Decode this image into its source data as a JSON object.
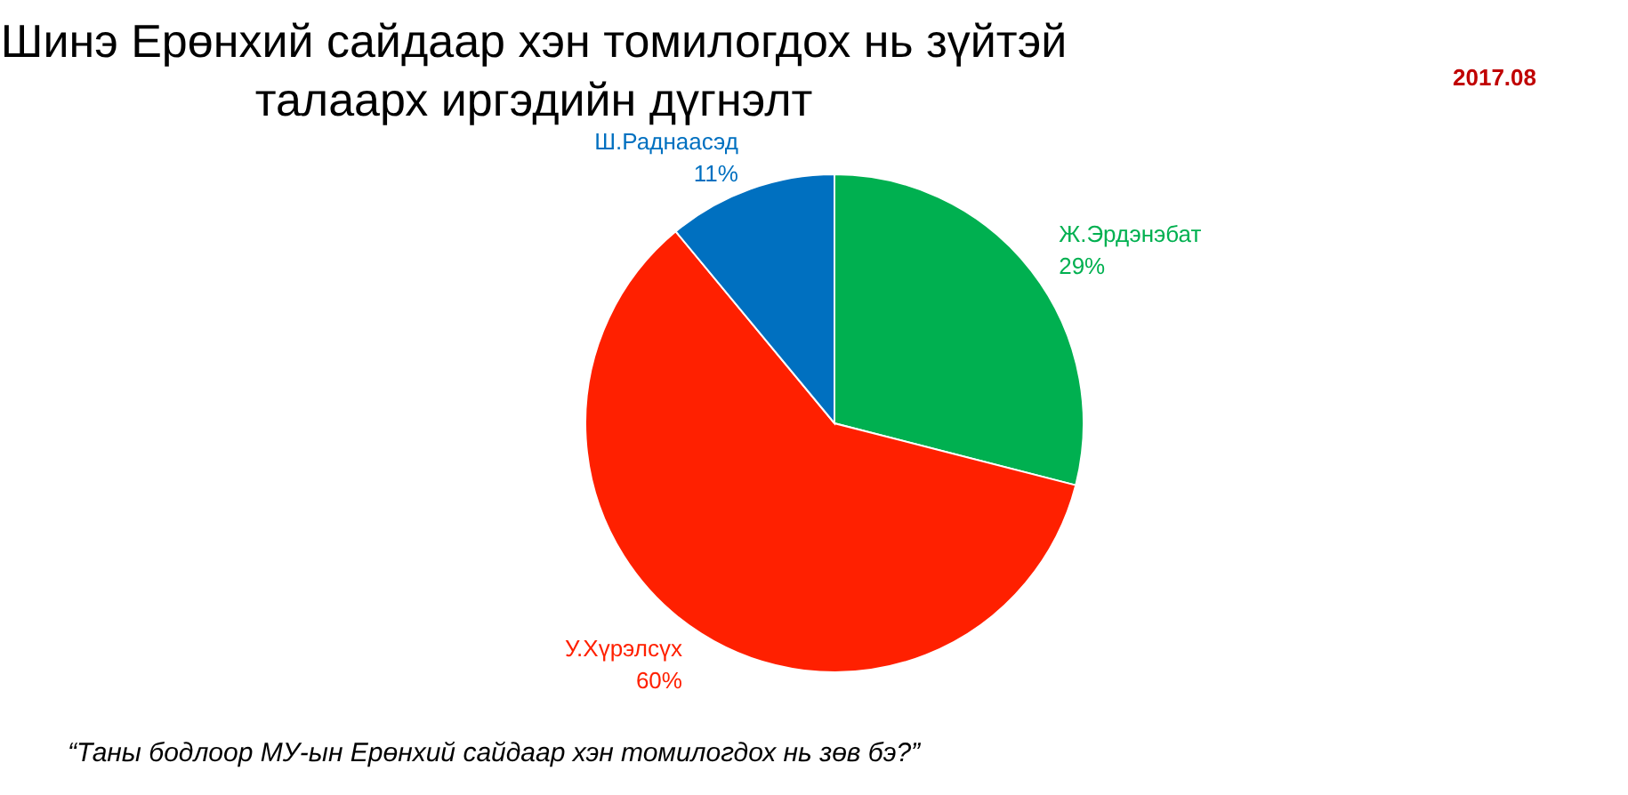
{
  "chart_data": {
    "type": "pie",
    "title": "Шинэ Ерөнхий сайдаар хэн томилогдох нь зүйтэй талаарх иргэдийн дүгнэлт",
    "categories": [
      "Ж.Эрдэнэбат",
      "У.Хүрэлсүх",
      "Ш.Раднаасэд"
    ],
    "values": [
      29,
      60,
      11
    ],
    "colors": [
      "#00b050",
      "#ff2000",
      "#0070c0"
    ],
    "value_labels": [
      "29%",
      "60%",
      "11%"
    ],
    "annotations": [
      "2017.08",
      "“Таны бодлоор МУ-ын Ерөнхий сайдаар хэн томилогдох нь зөв бэ?”"
    ]
  }
}
